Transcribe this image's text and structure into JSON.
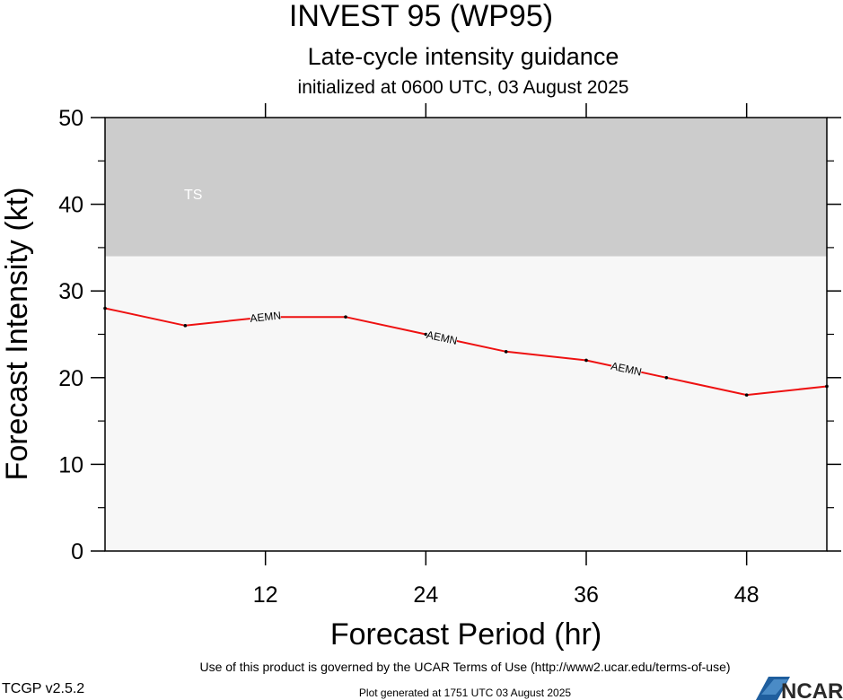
{
  "chart_data": {
    "type": "line",
    "title": "INVEST 95 (WP95)",
    "subtitle": "Late-cycle intensity guidance",
    "init_line": "initialized at 0600 UTC, 03 August 2025",
    "xlabel": "Forecast Period (hr)",
    "ylabel": "Forecast Intensity (kt)",
    "xlim": [
      0,
      54
    ],
    "ylim": [
      0,
      50
    ],
    "x_ticks": [
      12,
      24,
      36,
      48
    ],
    "x_tick_labels": [
      "12",
      "24",
      "36",
      "48"
    ],
    "y_ticks": [
      0,
      10,
      20,
      30,
      40,
      50
    ],
    "y_tick_labels": [
      "0",
      "10",
      "20",
      "30",
      "40",
      "50"
    ],
    "grid": false,
    "band": {
      "label": "TS",
      "y_from": 34,
      "y_to": 50,
      "color": "#cccccc"
    },
    "series": [
      {
        "name": "AEMN",
        "color": "#ee1111",
        "x": [
          0,
          6,
          12,
          18,
          24,
          30,
          36,
          42,
          48,
          54
        ],
        "y": [
          28,
          26,
          27,
          27,
          25,
          23,
          22,
          20,
          18,
          19
        ],
        "inline_labels_at_x": [
          12,
          25.2,
          39
        ]
      }
    ]
  },
  "footer": {
    "terms": "Use of this product is governed by the UCAR Terms of Use (http://www2.ucar.edu/terms-of-use)",
    "version": "TCGP v2.5.2",
    "generated": "Plot generated at 1751 UTC   03 August 2025",
    "logo_text": "NCAR"
  }
}
